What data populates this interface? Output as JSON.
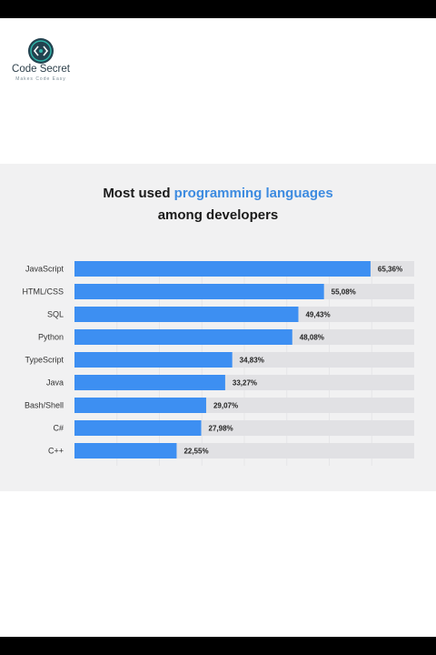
{
  "brand": {
    "name": "Code Secret",
    "tagline": "Makes Code Easy"
  },
  "title": {
    "part1": "Most used ",
    "highlight": "programming languages",
    "line2": "among developers"
  },
  "colors": {
    "accent": "#3d8be0",
    "bar": "#3d8ff2",
    "track": "#e1e1e4",
    "panel": "#f1f1f2"
  },
  "chart_data": {
    "type": "bar",
    "orientation": "horizontal",
    "title": "Most used programming languages among developers",
    "categories": [
      "JavaScript",
      "HTML/CSS",
      "SQL",
      "Python",
      "TypeScript",
      "Java",
      "Bash/Shell",
      "C#",
      "C++"
    ],
    "values": [
      65.36,
      55.08,
      49.43,
      48.08,
      34.83,
      33.27,
      29.07,
      27.98,
      22.55
    ],
    "value_labels": [
      "65,36%",
      "55,08%",
      "49,43%",
      "48,08%",
      "34,83%",
      "33,27%",
      "29,07%",
      "27,98%",
      "22,55%"
    ],
    "xlim": [
      0,
      75
    ],
    "grid": true
  }
}
